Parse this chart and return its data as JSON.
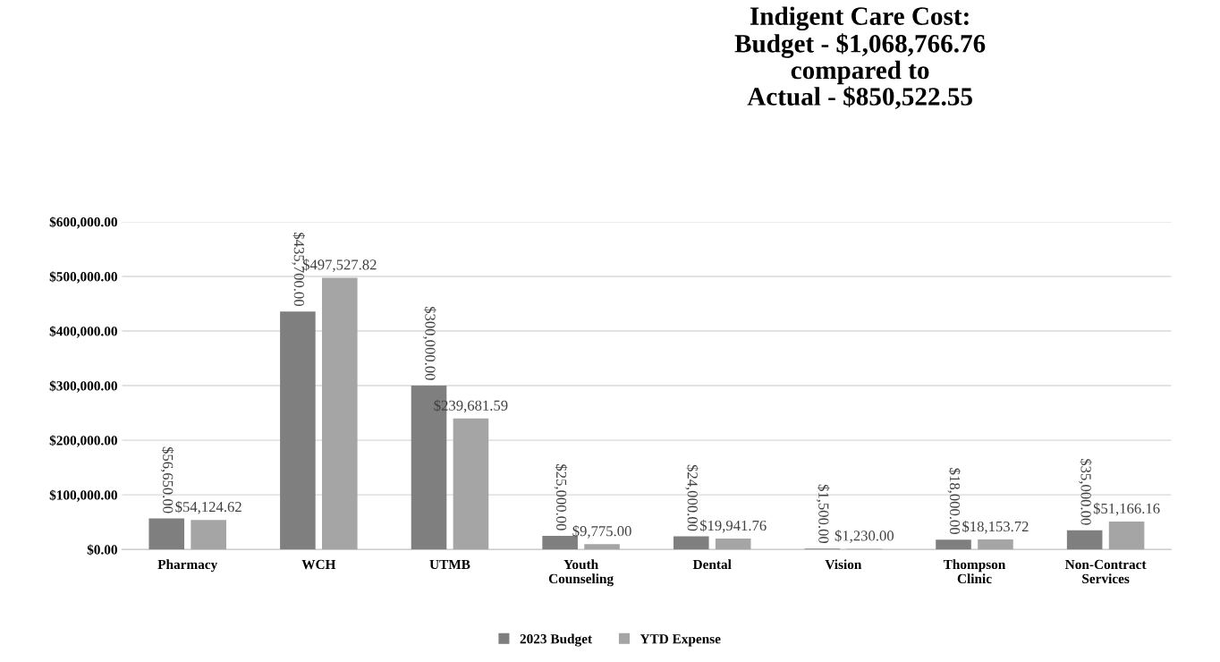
{
  "chart_data": {
    "type": "bar",
    "title": "Indigent Care Cost:\nBudget - $1,068,766.76\ncompared to\nActual - $850,522.55",
    "categories": [
      "Pharmacy",
      "WCH",
      "UTMB",
      "Youth\nCounseling",
      "Dental",
      "Vision",
      "Thompson\nClinic",
      "Non-Contract\nServices"
    ],
    "series": [
      {
        "name": "2023 Budget",
        "color": "#7f7f7f",
        "values": [
          56650.0,
          435700.0,
          300000.0,
          25000.0,
          24000.0,
          1500.0,
          18000.0,
          35000.0
        ],
        "value_labels": [
          "$56,650.00",
          "$435,700.00",
          "$300,000.00",
          "$25,000.00",
          "$24,000.00",
          "$1,500.00",
          "$18,000.00",
          "$35,000.00"
        ]
      },
      {
        "name": "YTD Expense",
        "color": "#a5a5a5",
        "values": [
          54124.62,
          497527.82,
          239681.59,
          9775.0,
          19941.76,
          1230.0,
          18153.72,
          51166.16
        ],
        "value_labels": [
          "$54,124.62",
          "$497,527.82",
          "$239,681.59",
          "$9,775.00",
          "$19,941.76",
          "$1,230.00",
          "$18,153.72",
          "$51,166.16"
        ]
      }
    ],
    "ylim": [
      0,
      600000
    ],
    "yticks": [
      {
        "value": 0,
        "label": "$0.00"
      },
      {
        "value": 100000,
        "label": "$100,000.00"
      },
      {
        "value": 200000,
        "label": "$200,000.00"
      },
      {
        "value": 300000,
        "label": "$300,000.00"
      },
      {
        "value": 400000,
        "label": "$400,000.00"
      },
      {
        "value": 500000,
        "label": "$500,000.00"
      },
      {
        "value": 600000,
        "label": "$600,000.00"
      }
    ],
    "grid": "y",
    "legend": "bottom"
  }
}
